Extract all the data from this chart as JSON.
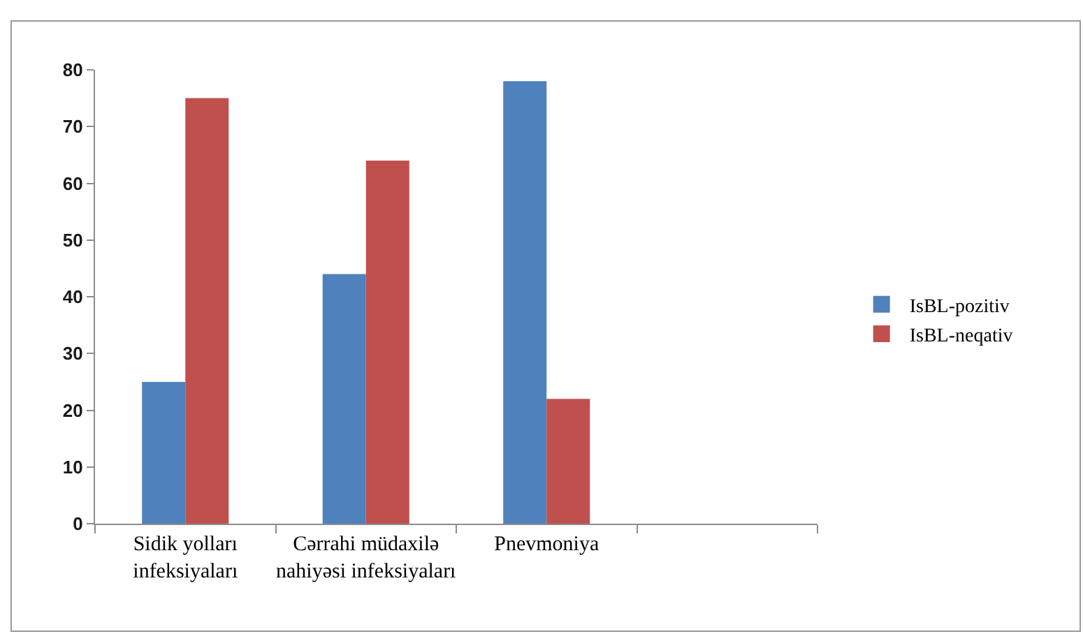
{
  "chart_data": {
    "type": "bar",
    "categories": [
      "Sidik yolları infeksiyaları",
      "Cərrahi müdaxilə nahiyəsi infeksiyaları",
      "Pnevmoniya",
      null
    ],
    "series": [
      {
        "name": "IsBL-pozitiv",
        "color": "#4f81bd",
        "values": [
          25,
          44,
          78,
          null
        ]
      },
      {
        "name": "IsBL-neqativ",
        "color": "#c0504d",
        "values": [
          75,
          64,
          22,
          null
        ]
      }
    ],
    "ylim": [
      0,
      80
    ],
    "yticks": [
      0,
      10,
      20,
      30,
      40,
      50,
      60,
      70,
      80
    ],
    "legend": "right"
  }
}
